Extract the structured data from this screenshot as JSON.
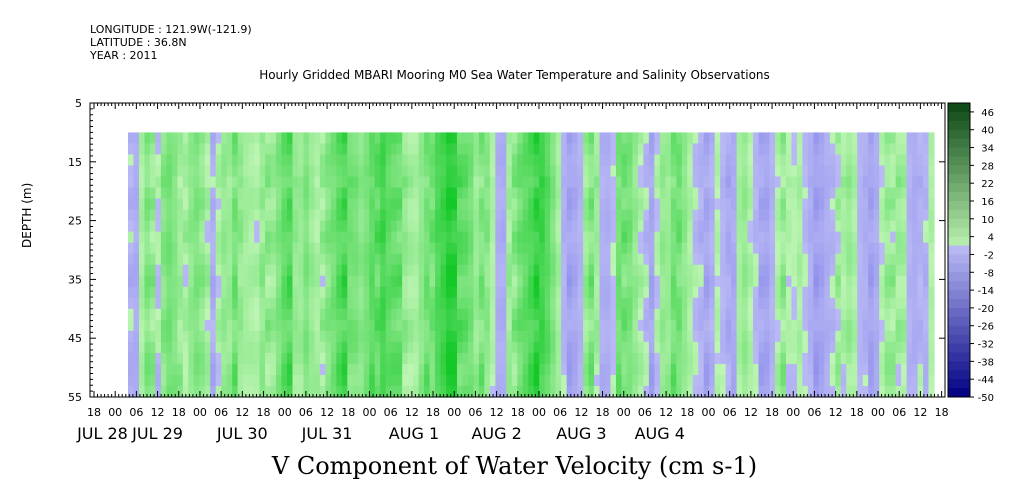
{
  "header": {
    "longitude": "LONGITUDE : 121.9W(-121.9)",
    "latitude": "LATITUDE : 36.8N",
    "year": "YEAR : 2011"
  },
  "chart_data": {
    "type": "heatmap",
    "title": "Hourly Gridded MBARI Mooring M0 Sea Water Temperature and Salinity Observations",
    "xlabel": "V Component of Water Velocity (cm s-1)",
    "ylabel": "DEPTH (m)",
    "y_ticks": [
      5,
      15,
      25,
      35,
      45,
      55
    ],
    "ylim": [
      55,
      5
    ],
    "y_inverted": true,
    "data_depth_range": [
      10,
      55
    ],
    "x_hour_ticks": [
      "18",
      "00",
      "06",
      "12",
      "18",
      "00",
      "06",
      "12",
      "18",
      "00",
      "06",
      "12",
      "18",
      "00",
      "06",
      "12",
      "18",
      "00",
      "06",
      "12",
      "18",
      "00",
      "06",
      "12",
      "18",
      "00",
      "06",
      "12",
      "18",
      "00",
      "06",
      "12",
      "18",
      "00",
      "06",
      "12",
      "18",
      "00",
      "06",
      "12",
      "18"
    ],
    "x_date_labels": [
      "JUL 28",
      "JUL 29",
      "JUL 30",
      "JUL 31",
      "AUG  1",
      "AUG  2",
      "AUG  3",
      "AUG  4"
    ],
    "colorbar": {
      "labels": [
        "46",
        "40",
        "34",
        "28",
        "22",
        "16",
        "10",
        "4",
        "-2",
        "-8",
        "-14",
        "-20",
        "-26",
        "-32",
        "-38",
        "-44",
        "-50"
      ],
      "min": -50,
      "max": 49,
      "step": 3
    },
    "column_profile_v": [
      -1,
      -3,
      2,
      5,
      3,
      1,
      6,
      7,
      5,
      2,
      3,
      5,
      6,
      4,
      1,
      -2,
      2,
      4,
      3,
      6,
      5,
      3,
      2,
      1,
      3,
      5,
      4,
      6,
      8,
      9,
      5,
      4,
      6,
      3,
      1,
      4,
      6,
      7,
      9,
      10,
      8,
      7,
      5,
      6,
      8,
      10,
      12,
      9,
      8,
      7,
      5,
      3,
      2,
      4,
      6,
      8,
      11,
      12,
      14,
      13,
      10,
      9,
      7,
      3,
      5,
      6,
      2,
      -3,
      -4,
      2,
      6,
      8,
      9,
      10,
      12,
      13,
      10,
      6,
      2,
      -3,
      -5,
      -4,
      -2,
      3,
      5,
      4,
      -2,
      -3,
      -1,
      6,
      8,
      7,
      4,
      1,
      -2,
      -4,
      1,
      4,
      3,
      6,
      8,
      5,
      2,
      -1,
      -3,
      -4,
      -2,
      1,
      -2,
      -5,
      -3,
      3,
      4,
      1,
      -2,
      -4,
      -5,
      -2,
      1,
      3,
      2,
      1,
      2,
      -1,
      -4,
      -6,
      -5,
      -3,
      -2,
      1,
      3,
      4,
      2,
      -2,
      -4,
      -5,
      -3,
      1,
      3,
      2,
      4,
      3,
      -2,
      -4,
      -3,
      -1,
      2
    ],
    "depth_modifier_v": [
      2,
      1,
      0,
      0,
      -1,
      1,
      2,
      1,
      0,
      -1,
      0,
      1,
      2,
      3,
      2,
      1,
      0,
      -1,
      0,
      1,
      2,
      3,
      3,
      2
    ]
  }
}
